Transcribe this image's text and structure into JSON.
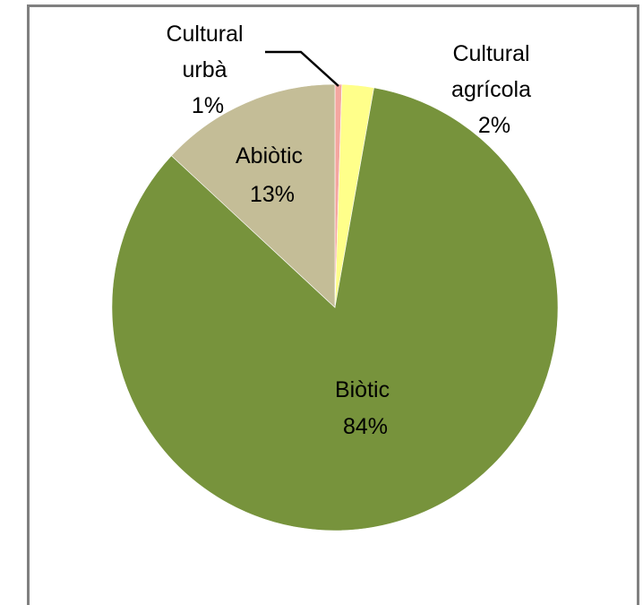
{
  "chart_data": {
    "type": "pie",
    "title": "",
    "slices": [
      {
        "label_lines": [
          "Cultural",
          "urbà"
        ],
        "pct_label": "1%",
        "value": 0.5,
        "color": "#F4A6A0"
      },
      {
        "label_lines": [
          "Cultural",
          "agrícola"
        ],
        "pct_label": "2%",
        "value": 2.3,
        "color": "#FFFF8A"
      },
      {
        "label_lines": [
          "Biòtic"
        ],
        "pct_label": "84%",
        "value": 84.1,
        "color": "#77933C"
      },
      {
        "label_lines": [
          "Abiòtic"
        ],
        "pct_label": "13%",
        "value": 13.1,
        "color": "#C4BD97"
      }
    ],
    "start_angle_deg": 0,
    "direction": "clockwise",
    "legend": "none"
  }
}
